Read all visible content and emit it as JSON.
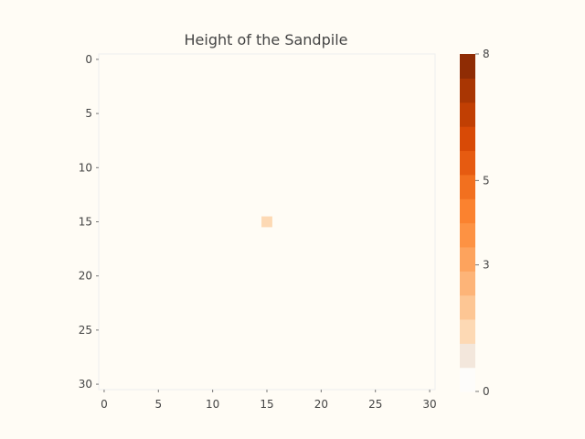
{
  "chart_data": {
    "type": "heatmap",
    "title": "Height of the Sandpile",
    "grid_size": [
      31,
      31
    ],
    "x_ticks": [
      0,
      5,
      10,
      15,
      20,
      25,
      30
    ],
    "y_ticks": [
      0,
      5,
      10,
      15,
      20,
      25,
      30
    ],
    "xlim": [
      -0.5,
      30.5
    ],
    "ylim": [
      -0.5,
      30.5
    ],
    "y_direction": "top-to-bottom",
    "background_value": 0,
    "cells": [
      {
        "row": 15,
        "col": 15,
        "value": 1
      }
    ],
    "colorbar": {
      "min": 0,
      "max": 8,
      "ticks": [
        0,
        3,
        5,
        8
      ],
      "colors": [
        "#fdfcfa",
        "#f3e7dc",
        "#fdd9b4",
        "#fdc694",
        "#fdb478",
        "#fda35d",
        "#fd9243",
        "#fb822f",
        "#f2701f",
        "#e65b11",
        "#d84a06",
        "#c13f03",
        "#a93603",
        "#8f2c04"
      ]
    },
    "colors": {
      "background": "#fffcf5",
      "frame": "#eeeeee",
      "text": "#444444"
    },
    "grid": false,
    "legend": "colorbar-right"
  }
}
